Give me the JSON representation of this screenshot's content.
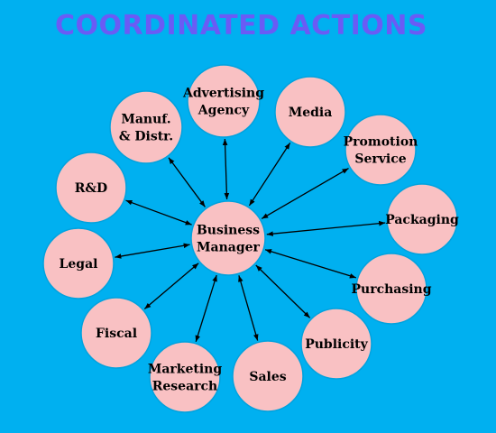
{
  "title": "COORDINATED ACTIONS",
  "center": {
    "id": "center",
    "lines": [
      "Business",
      "Manager"
    ]
  },
  "nodes": [
    {
      "id": "advertising",
      "lines": [
        "Advertising",
        "Agency"
      ]
    },
    {
      "id": "media",
      "lines": [
        "Media"
      ]
    },
    {
      "id": "promotion",
      "lines": [
        "Promotion",
        "Service"
      ]
    },
    {
      "id": "packaging",
      "lines": [
        "Packaging"
      ]
    },
    {
      "id": "purchasing",
      "lines": [
        "Purchasing"
      ]
    },
    {
      "id": "publicity",
      "lines": [
        "Publicity"
      ]
    },
    {
      "id": "sales",
      "lines": [
        "Sales"
      ]
    },
    {
      "id": "marketing",
      "lines": [
        "Marketing",
        "Research"
      ]
    },
    {
      "id": "fiscal",
      "lines": [
        "Fiscal"
      ]
    },
    {
      "id": "legal",
      "lines": [
        "Legal"
      ]
    },
    {
      "id": "rd",
      "lines": [
        "R&D"
      ]
    },
    {
      "id": "manuf",
      "lines": [
        "Manuf.",
        "& Distr."
      ]
    }
  ]
}
